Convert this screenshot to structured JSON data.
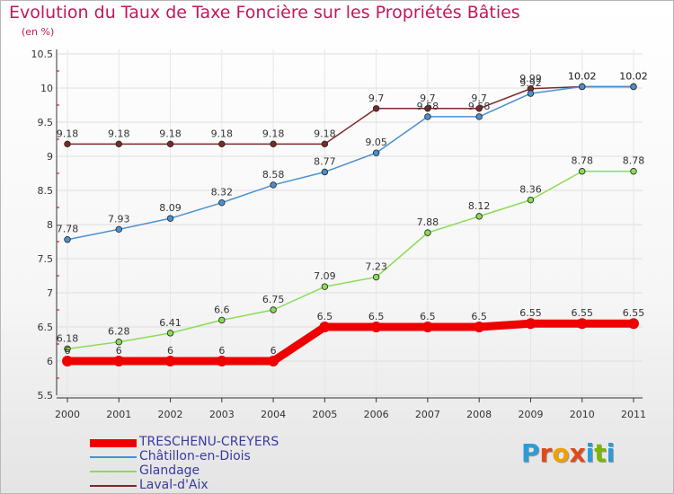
{
  "header": {
    "title": "Evolution du Taux de Taxe Foncière sur les Propriétés Bâties",
    "subtitle": "(en %)"
  },
  "chart_data": {
    "type": "line",
    "title": "Evolution du Taux de Taxe Foncière sur les Propriétés Bâties",
    "ylabel": "(en %)",
    "xlabel": "",
    "x": [
      "2000",
      "2001",
      "2002",
      "2003",
      "2004",
      "2005",
      "2006",
      "2007",
      "2008",
      "2009",
      "2010",
      "2011"
    ],
    "ylim": [
      5.5,
      10.5
    ],
    "yticks": [
      "5.5",
      "6",
      "6.5",
      "7",
      "7.5",
      "8",
      "8.5",
      "9",
      "9.5",
      "10",
      "10.5"
    ],
    "grid": true,
    "legend_position": "bottom-left",
    "series": [
      {
        "name": "TRESCHENU-CREYERS",
        "color": "#ee0000",
        "values": [
          6,
          6,
          6,
          6,
          6,
          6.5,
          6.5,
          6.5,
          6.5,
          6.55,
          6.55,
          6.55
        ],
        "labels": [
          "6",
          "6",
          "6",
          "6",
          "6",
          "6.5",
          "6.5",
          "6.5",
          "6.5",
          "6.55",
          "6.55",
          "6.55"
        ]
      },
      {
        "name": "Châtillon-en-Diois",
        "color": "#4a90d0",
        "values": [
          7.78,
          7.93,
          8.09,
          8.32,
          8.58,
          8.77,
          9.05,
          9.58,
          9.58,
          9.92,
          10.02,
          10.02
        ],
        "labels": [
          "7.78",
          "7.93",
          "8.09",
          "8.32",
          "8.58",
          "8.77",
          "9.05",
          "9.58",
          "9.58",
          "9.92",
          "10.02",
          "10.02"
        ]
      },
      {
        "name": "Glandage",
        "color": "#88dd55",
        "values": [
          6.18,
          6.28,
          6.41,
          6.6,
          6.75,
          7.09,
          7.23,
          7.88,
          8.12,
          8.36,
          8.78,
          8.78
        ],
        "labels": [
          "6.18",
          "6.28",
          "6.41",
          "6.6",
          "6.75",
          "7.09",
          "7.23",
          "7.88",
          "8.12",
          "8.36",
          "8.78",
          "8.78"
        ]
      },
      {
        "name": "Laval-d'Aix",
        "color": "#7a2a2a",
        "values": [
          9.18,
          9.18,
          9.18,
          9.18,
          9.18,
          9.18,
          9.7,
          9.7,
          9.7,
          9.99,
          10.02,
          10.02
        ],
        "labels": [
          "9.18",
          "9.18",
          "9.18",
          "9.18",
          "9.18",
          "9.18",
          "9.7",
          "9.7",
          "9.7",
          "9.99",
          "10.02",
          "10.02"
        ]
      }
    ]
  },
  "logo": {
    "letters": [
      "P",
      "r",
      "o",
      "x",
      "i",
      "t",
      "i"
    ],
    "colors": [
      "#2e9bd6",
      "#e04a1a",
      "#f0a000",
      "#e04a1a",
      "#2e9bd6",
      "#7ab800",
      "#2e9bd6"
    ]
  }
}
